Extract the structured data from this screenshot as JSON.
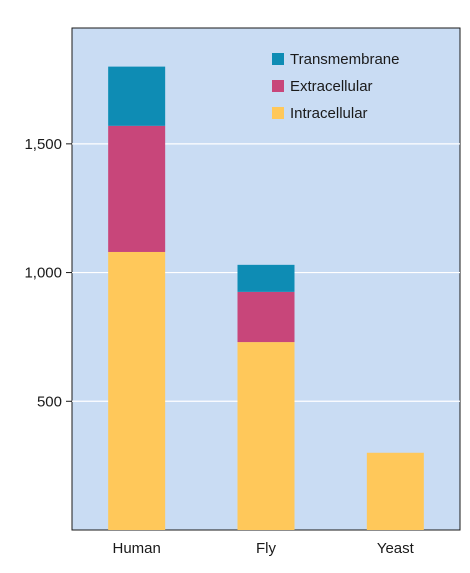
{
  "chart_data": {
    "type": "bar",
    "stacked": true,
    "categories": [
      "Human",
      "Fly",
      "Yeast"
    ],
    "series": [
      {
        "name": "Intracellular",
        "values": [
          1080,
          730,
          300
        ],
        "color": "#ffc85a"
      },
      {
        "name": "Extracellular",
        "values": [
          490,
          195,
          0
        ],
        "color": "#c8467a"
      },
      {
        "name": "Transmembrane",
        "values": [
          230,
          105,
          0
        ],
        "color": "#0e8cb4"
      }
    ],
    "legend_order": [
      "Transmembrane",
      "Extracellular",
      "Intracellular"
    ],
    "yticks": [
      500,
      1000,
      1500
    ],
    "ytick_labels": [
      "500",
      "1,000",
      "1,500"
    ],
    "ylim": [
      0,
      1950
    ],
    "grid": true,
    "legend_position": "top-right",
    "plot_background": "#c9dcf3",
    "title": "",
    "xlabel": "",
    "ylabel": ""
  }
}
